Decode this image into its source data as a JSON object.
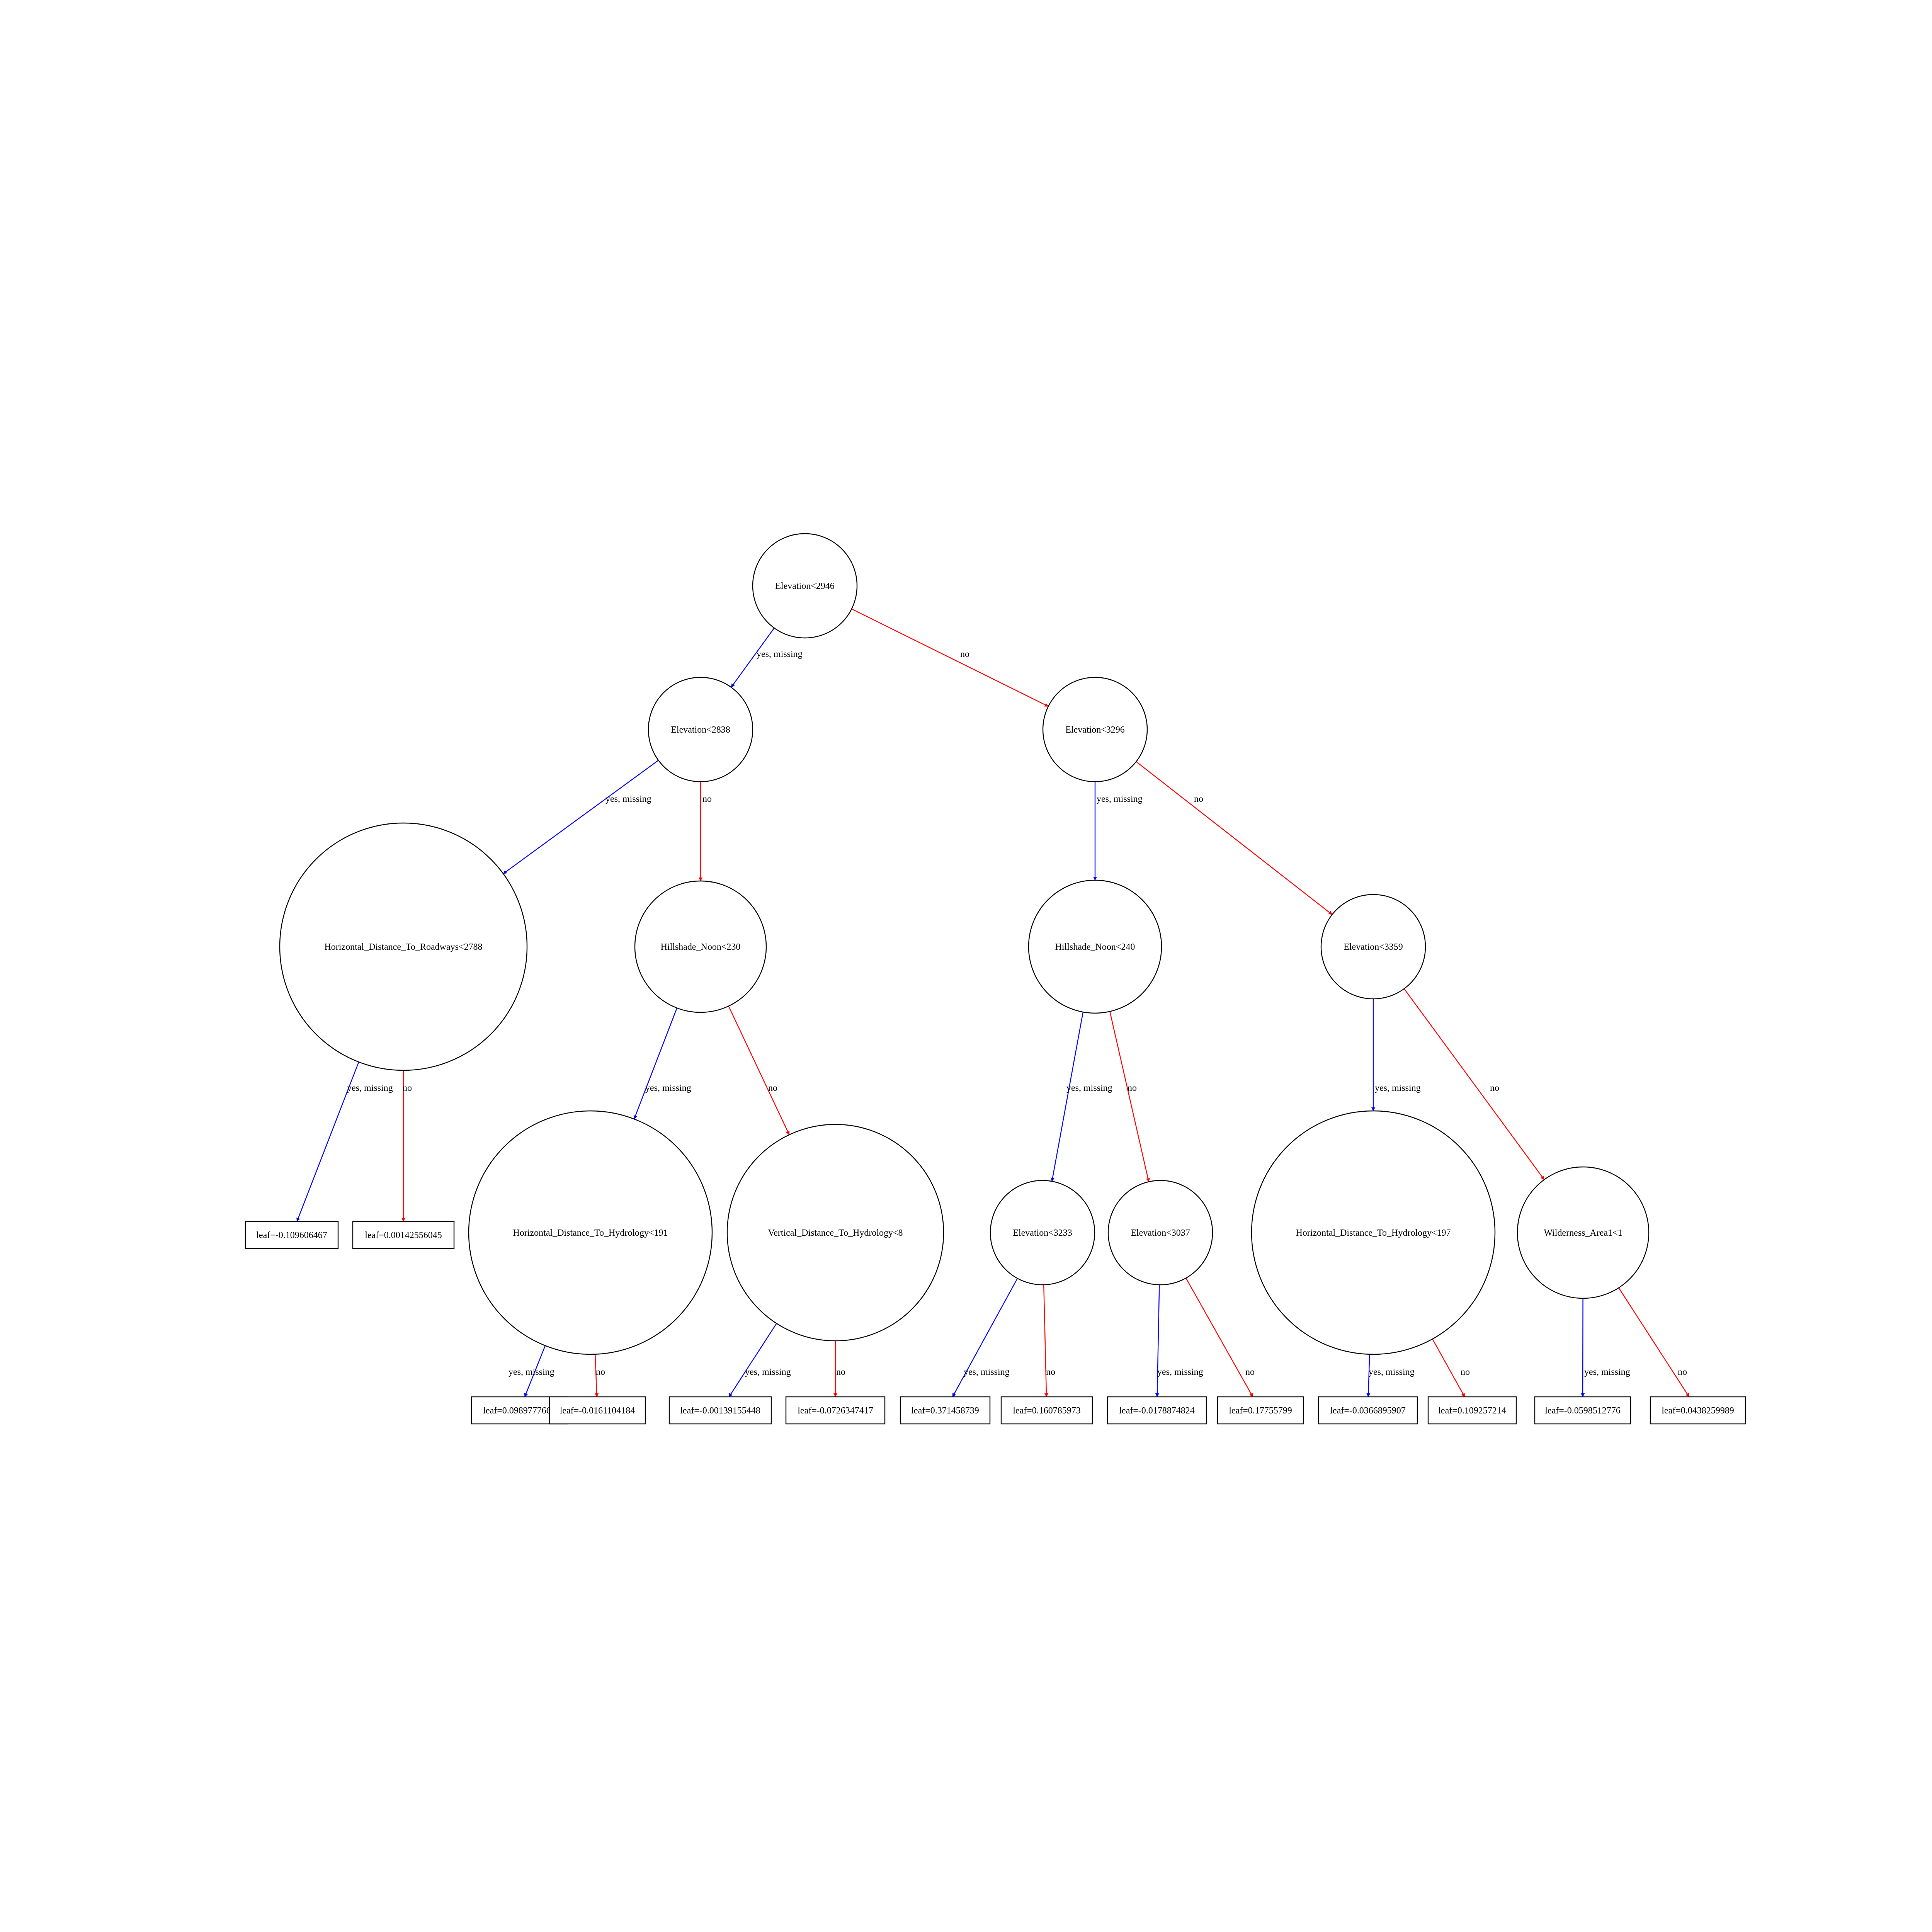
{
  "colors": {
    "yes": "#0000ff",
    "no": "#ff0000",
    "stroke": "#000000"
  },
  "nodes": {
    "n0": {
      "label": "Elevation<2946"
    },
    "n1": {
      "label": "Elevation<2838"
    },
    "n2": {
      "label": "Elevation<3296"
    },
    "n3": {
      "label": "Horizontal_Distance_To_Roadways<2788"
    },
    "n4": {
      "label": "Hillshade_Noon<230"
    },
    "n5": {
      "label": "Hillshade_Noon<240"
    },
    "n6": {
      "label": "Elevation<3359"
    },
    "n7": {
      "label": "Horizontal_Distance_To_Hydrology<191"
    },
    "n8": {
      "label": "Vertical_Distance_To_Hydrology<8"
    },
    "n9": {
      "label": "Elevation<3233"
    },
    "n10": {
      "label": "Elevation<3037"
    },
    "n11": {
      "label": "Horizontal_Distance_To_Hydrology<197"
    },
    "n12": {
      "label": "Wilderness_Area1<1"
    }
  },
  "leaves": {
    "l0": {
      "label": "leaf=-0.109606467"
    },
    "l1": {
      "label": "leaf=0.00142556045"
    },
    "l2": {
      "label": "leaf=0.0989777669"
    },
    "l3": {
      "label": "leaf=-0.0161104184"
    },
    "l4": {
      "label": "leaf=-0.00139155448"
    },
    "l5": {
      "label": "leaf=-0.0726347417"
    },
    "l6": {
      "label": "leaf=0.371458739"
    },
    "l7": {
      "label": "leaf=0.160785973"
    },
    "l8": {
      "label": "leaf=-0.0178874824"
    },
    "l9": {
      "label": "leaf=0.17755799"
    },
    "l10": {
      "label": "leaf=-0.0366895907"
    },
    "l11": {
      "label": "leaf=0.109257214"
    },
    "l12": {
      "label": "leaf=-0.0598512776"
    },
    "l13": {
      "label": "leaf=0.0438259989"
    }
  },
  "edges": [
    {
      "from": "n0",
      "to": "n1",
      "kind": "yes",
      "label": "yes, missing"
    },
    {
      "from": "n0",
      "to": "n2",
      "kind": "no",
      "label": "no"
    },
    {
      "from": "n1",
      "to": "n3",
      "kind": "yes",
      "label": "yes, missing"
    },
    {
      "from": "n1",
      "to": "n4",
      "kind": "no",
      "label": "no"
    },
    {
      "from": "n2",
      "to": "n5",
      "kind": "yes",
      "label": "yes, missing"
    },
    {
      "from": "n2",
      "to": "n6",
      "kind": "no",
      "label": "no"
    },
    {
      "from": "n3",
      "to": "l0",
      "kind": "yes",
      "label": "yes, missing"
    },
    {
      "from": "n3",
      "to": "l1",
      "kind": "no",
      "label": "no"
    },
    {
      "from": "n4",
      "to": "n7",
      "kind": "yes",
      "label": "yes, missing"
    },
    {
      "from": "n4",
      "to": "n8",
      "kind": "no",
      "label": "no"
    },
    {
      "from": "n5",
      "to": "n9",
      "kind": "yes",
      "label": "yes, missing"
    },
    {
      "from": "n5",
      "to": "n10",
      "kind": "no",
      "label": "no"
    },
    {
      "from": "n6",
      "to": "n11",
      "kind": "yes",
      "label": "yes, missing"
    },
    {
      "from": "n6",
      "to": "n12",
      "kind": "no",
      "label": "no"
    },
    {
      "from": "n7",
      "to": "l2",
      "kind": "yes",
      "label": "yes, missing"
    },
    {
      "from": "n7",
      "to": "l3",
      "kind": "no",
      "label": "no"
    },
    {
      "from": "n8",
      "to": "l4",
      "kind": "yes",
      "label": "yes, missing"
    },
    {
      "from": "n8",
      "to": "l5",
      "kind": "no",
      "label": "no"
    },
    {
      "from": "n9",
      "to": "l6",
      "kind": "yes",
      "label": "yes, missing"
    },
    {
      "from": "n9",
      "to": "l7",
      "kind": "no",
      "label": "no"
    },
    {
      "from": "n10",
      "to": "l8",
      "kind": "yes",
      "label": "yes, missing"
    },
    {
      "from": "n10",
      "to": "l9",
      "kind": "no",
      "label": "no"
    },
    {
      "from": "n11",
      "to": "l10",
      "kind": "yes",
      "label": "yes, missing"
    },
    {
      "from": "n11",
      "to": "l11",
      "kind": "no",
      "label": "no"
    },
    {
      "from": "n12",
      "to": "l12",
      "kind": "yes",
      "label": "yes, missing"
    },
    {
      "from": "n12",
      "to": "l13",
      "kind": "no",
      "label": "no"
    }
  ]
}
